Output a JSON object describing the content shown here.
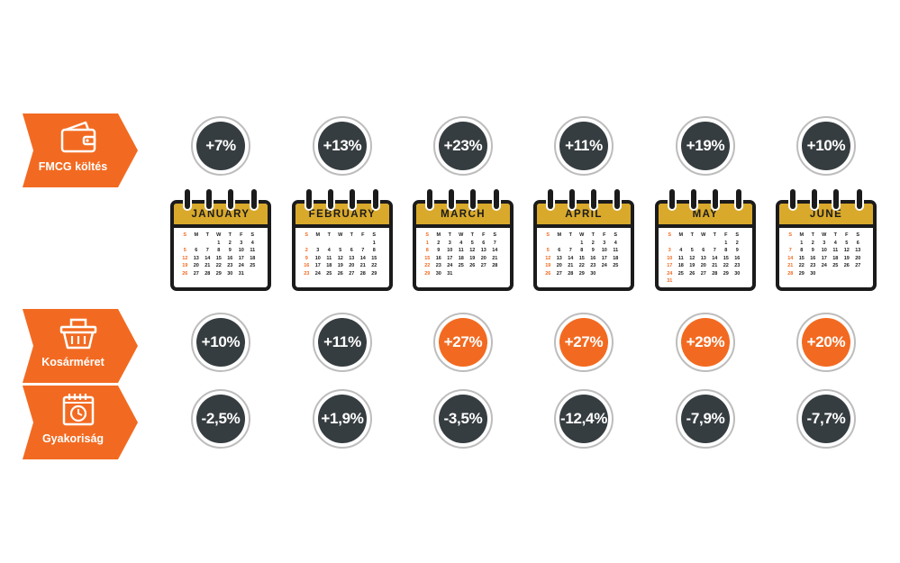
{
  "colors": {
    "accent": "#f26a21",
    "dark": "#363d40",
    "gold": "#d9a92b"
  },
  "rows": [
    {
      "key": "fmcg",
      "label": "FMCG költés",
      "icon": "wallet-icon",
      "values": [
        "+7%",
        "+13%",
        "+23%",
        "+11%",
        "+19%",
        "+10%"
      ],
      "highlight": [
        false,
        false,
        false,
        false,
        false,
        false
      ]
    },
    {
      "key": "basket",
      "label": "Kosárméret",
      "icon": "basket-icon",
      "values": [
        "+10%",
        "+11%",
        "+27%",
        "+27%",
        "+29%",
        "+20%"
      ],
      "highlight": [
        false,
        false,
        true,
        true,
        true,
        true
      ]
    },
    {
      "key": "frequency",
      "label": "Gyakoriság",
      "icon": "calendar-clock-icon",
      "values": [
        "-2,5%",
        "+1,9%",
        "-3,5%",
        "-12,4%",
        "-7,9%",
        "-7,7%"
      ],
      "highlight": [
        false,
        false,
        false,
        false,
        false,
        false
      ]
    }
  ],
  "calendars": {
    "weekday_headers": [
      "S",
      "M",
      "T",
      "W",
      "T",
      "F",
      "S"
    ],
    "months": [
      {
        "name": "JANUARY",
        "weeks": [
          [
            "",
            "",
            "",
            "1",
            "2",
            "3",
            "4"
          ],
          [
            "5",
            "6",
            "7",
            "8",
            "9",
            "10",
            "11"
          ],
          [
            "12",
            "13",
            "14",
            "15",
            "16",
            "17",
            "18"
          ],
          [
            "19",
            "20",
            "21",
            "22",
            "23",
            "24",
            "25"
          ],
          [
            "26",
            "27",
            "28",
            "29",
            "30",
            "31",
            ""
          ]
        ]
      },
      {
        "name": "FEBRUARY",
        "weeks": [
          [
            "",
            "",
            "",
            "",
            "",
            "",
            "1"
          ],
          [
            "2",
            "3",
            "4",
            "5",
            "6",
            "7",
            "8"
          ],
          [
            "9",
            "10",
            "11",
            "12",
            "13",
            "14",
            "15"
          ],
          [
            "16",
            "17",
            "18",
            "19",
            "20",
            "21",
            "22"
          ],
          [
            "23",
            "24",
            "25",
            "26",
            "27",
            "28",
            "29"
          ]
        ]
      },
      {
        "name": "MARCH",
        "weeks": [
          [
            "1",
            "2",
            "3",
            "4",
            "5",
            "6",
            "7"
          ],
          [
            "8",
            "9",
            "10",
            "11",
            "12",
            "13",
            "14"
          ],
          [
            "15",
            "16",
            "17",
            "18",
            "19",
            "20",
            "21"
          ],
          [
            "22",
            "23",
            "24",
            "25",
            "26",
            "27",
            "28"
          ],
          [
            "29",
            "30",
            "31",
            "",
            "",
            "",
            ""
          ]
        ]
      },
      {
        "name": "APRIL",
        "weeks": [
          [
            "",
            "",
            "",
            "1",
            "2",
            "3",
            "4"
          ],
          [
            "5",
            "6",
            "7",
            "8",
            "9",
            "10",
            "11"
          ],
          [
            "12",
            "13",
            "14",
            "15",
            "16",
            "17",
            "18"
          ],
          [
            "19",
            "20",
            "21",
            "22",
            "23",
            "24",
            "25"
          ],
          [
            "26",
            "27",
            "28",
            "29",
            "30",
            "",
            ""
          ]
        ]
      },
      {
        "name": "MAY",
        "weeks": [
          [
            "",
            "",
            "",
            "",
            "",
            "1",
            "2"
          ],
          [
            "3",
            "4",
            "5",
            "6",
            "7",
            "8",
            "9"
          ],
          [
            "10",
            "11",
            "12",
            "13",
            "14",
            "15",
            "16"
          ],
          [
            "17",
            "18",
            "19",
            "20",
            "21",
            "22",
            "23"
          ],
          [
            "24",
            "25",
            "26",
            "27",
            "28",
            "29",
            "30"
          ],
          [
            "31",
            "",
            "",
            "",
            "",
            "",
            ""
          ]
        ]
      },
      {
        "name": "JUNE",
        "weeks": [
          [
            "",
            "1",
            "2",
            "3",
            "4",
            "5",
            "6"
          ],
          [
            "7",
            "8",
            "9",
            "10",
            "11",
            "12",
            "13"
          ],
          [
            "14",
            "15",
            "16",
            "17",
            "18",
            "19",
            "20"
          ],
          [
            "21",
            "22",
            "23",
            "24",
            "25",
            "26",
            "27"
          ],
          [
            "28",
            "29",
            "30",
            "",
            "",
            "",
            ""
          ]
        ]
      }
    ]
  }
}
